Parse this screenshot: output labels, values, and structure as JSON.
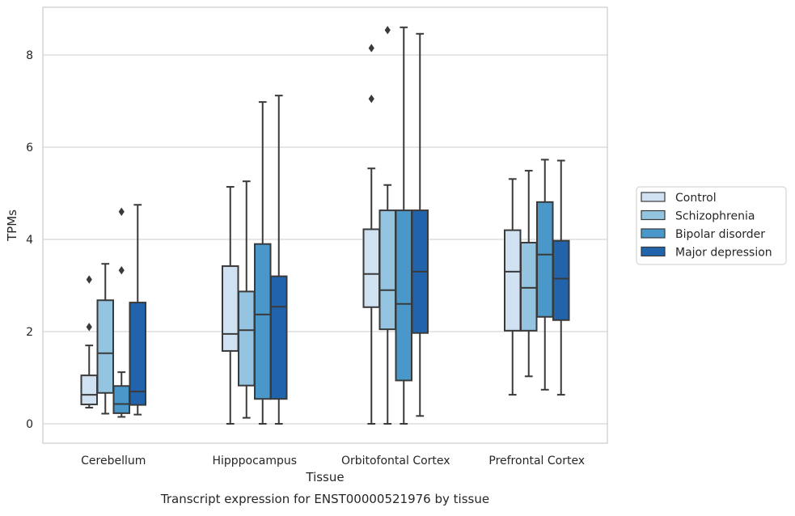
{
  "chart_data": {
    "type": "boxplot",
    "title": "",
    "caption": "Transcript expression for ENST00000521976 by tissue",
    "xlabel": "Tissue",
    "ylabel": "TPMs",
    "ylim": [
      -0.42,
      9.0
    ],
    "yticks": [
      0,
      2,
      4,
      6,
      8
    ],
    "grid": "horizontal",
    "legend_position": "right",
    "categories": [
      "Cerebellum",
      "Hipppocampus",
      "Orbitofontal Cortex",
      "Prefrontal Cortex"
    ],
    "series": [
      {
        "name": "Control",
        "color": "#d0e1f2",
        "boxes": [
          {
            "whislo": 0.35,
            "q1": 0.42,
            "med": 0.63,
            "q3": 1.05,
            "whishi": 1.7,
            "fliers": [
              2.1,
              3.13
            ]
          },
          {
            "whislo": 0.0,
            "q1": 1.58,
            "med": 1.95,
            "q3": 3.42,
            "whishi": 5.14,
            "fliers": []
          },
          {
            "whislo": 0.0,
            "q1": 2.53,
            "med": 3.25,
            "q3": 4.22,
            "whishi": 5.54,
            "fliers": [
              7.05,
              8.15
            ]
          },
          {
            "whislo": 0.63,
            "q1": 2.02,
            "med": 3.3,
            "q3": 4.2,
            "whishi": 5.31,
            "fliers": []
          }
        ]
      },
      {
        "name": "Schizophrenia",
        "color": "#94c4df",
        "boxes": [
          {
            "whislo": 0.22,
            "q1": 0.67,
            "med": 1.53,
            "q3": 2.68,
            "whishi": 3.47,
            "fliers": []
          },
          {
            "whislo": 0.13,
            "q1": 0.83,
            "med": 2.03,
            "q3": 2.87,
            "whishi": 5.26,
            "fliers": []
          },
          {
            "whislo": 0.0,
            "q1": 2.05,
            "med": 2.9,
            "q3": 4.63,
            "whishi": 5.18,
            "fliers": [
              8.54
            ]
          },
          {
            "whislo": 1.03,
            "q1": 2.02,
            "med": 2.95,
            "q3": 3.93,
            "whishi": 5.49,
            "fliers": []
          }
        ]
      },
      {
        "name": "Bipolar disorder",
        "color": "#4a98c9",
        "boxes": [
          {
            "whislo": 0.15,
            "q1": 0.23,
            "med": 0.43,
            "q3": 0.82,
            "whishi": 1.12,
            "fliers": [
              3.33,
              4.6
            ]
          },
          {
            "whislo": 0.0,
            "q1": 0.54,
            "med": 2.37,
            "q3": 3.9,
            "whishi": 6.98,
            "fliers": []
          },
          {
            "whislo": 0.0,
            "q1": 0.94,
            "med": 2.6,
            "q3": 4.63,
            "whishi": 8.6,
            "fliers": []
          },
          {
            "whislo": 0.74,
            "q1": 2.32,
            "med": 3.67,
            "q3": 4.81,
            "whishi": 5.73,
            "fliers": []
          }
        ]
      },
      {
        "name": "Major depression",
        "color": "#2164ab",
        "boxes": [
          {
            "whislo": 0.2,
            "q1": 0.41,
            "med": 0.7,
            "q3": 2.63,
            "whishi": 4.75,
            "fliers": []
          },
          {
            "whislo": 0.0,
            "q1": 0.54,
            "med": 2.54,
            "q3": 3.2,
            "whishi": 7.12,
            "fliers": []
          },
          {
            "whislo": 0.17,
            "q1": 1.97,
            "med": 3.3,
            "q3": 4.63,
            "whishi": 8.46,
            "fliers": []
          },
          {
            "whislo": 0.63,
            "q1": 2.25,
            "med": 3.15,
            "q3": 3.97,
            "whishi": 5.71,
            "fliers": []
          }
        ]
      }
    ]
  }
}
